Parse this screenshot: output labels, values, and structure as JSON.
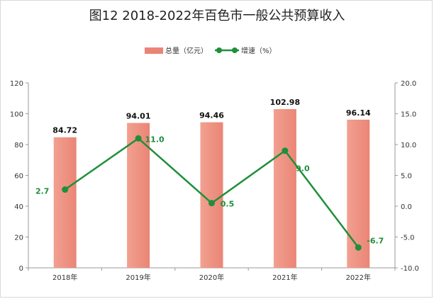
{
  "chart_data": {
    "type": "bar+line",
    "title": "图12  2018-2022年百色市一般公共预算收入",
    "categories": [
      "2018年",
      "2019年",
      "2020年",
      "2021年",
      "2022年"
    ],
    "series": [
      {
        "name": "总量（亿元）",
        "type": "bar",
        "axis": "left",
        "color": "#ea8576",
        "values": [
          84.72,
          94.01,
          94.46,
          102.98,
          96.14
        ],
        "labels": [
          "84.72",
          "94.01",
          "94.46",
          "102.98",
          "96.14"
        ]
      },
      {
        "name": "增速（%）",
        "type": "line",
        "axis": "right",
        "color": "#1e8f3b",
        "values": [
          2.7,
          11.0,
          0.5,
          9.0,
          -6.7
        ],
        "labels": [
          "2.7",
          "11.0",
          "0.5",
          "9.0",
          "-6.7"
        ]
      }
    ],
    "ylim_left": [
      0,
      120
    ],
    "yticks_left": [
      "0",
      "20",
      "40",
      "60",
      "80",
      "100",
      "120"
    ],
    "ylim_right": [
      -10,
      20
    ],
    "yticks_right": [
      "-10.0",
      "-5.0",
      "0.0",
      "5.0",
      "10.0",
      "15.0",
      "20.0"
    ],
    "legend_position": "top-center",
    "grid": false
  }
}
